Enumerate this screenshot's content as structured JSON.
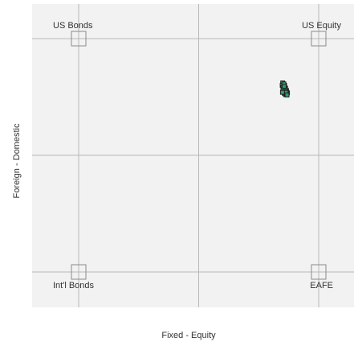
{
  "chart_data": {
    "type": "scatter",
    "title": "",
    "xlabel": "Fixed - Equity",
    "ylabel": "Foreign - Domestic",
    "xlim": [
      0,
      1
    ],
    "ylim": [
      0,
      1
    ],
    "grid": true,
    "colors": {
      "plot_background": "#f2f2f2",
      "gridline": "#b8b8b8",
      "anchor_box": "#8a8a8a",
      "point_fill": "#2e9a6e",
      "point_stroke": "#1a1a1a"
    },
    "anchors": [
      {
        "label": "US Bonds",
        "x": 0,
        "y": 1
      },
      {
        "label": "US Equity",
        "x": 1,
        "y": 1
      },
      {
        "label": "Int'l Bonds",
        "x": 0,
        "y": 0
      },
      {
        "label": "EAFE",
        "x": 1,
        "y": 0
      }
    ],
    "points": [
      {
        "x": 0.85,
        "y": 0.81
      },
      {
        "x": 0.848,
        "y": 0.8
      },
      {
        "x": 0.851,
        "y": 0.79
      },
      {
        "x": 0.853,
        "y": 0.775
      },
      {
        "x": 0.857,
        "y": 0.765
      },
      {
        "x": 0.862,
        "y": 0.76
      },
      {
        "x": 0.866,
        "y": 0.762
      },
      {
        "x": 0.87,
        "y": 0.768
      },
      {
        "x": 0.866,
        "y": 0.778
      },
      {
        "x": 0.862,
        "y": 0.788
      },
      {
        "x": 0.858,
        "y": 0.8
      },
      {
        "x": 0.855,
        "y": 0.806
      },
      {
        "x": 0.852,
        "y": 0.783
      },
      {
        "x": 0.86,
        "y": 0.775
      },
      {
        "x": 0.856,
        "y": 0.795
      },
      {
        "x": 0.864,
        "y": 0.77
      },
      {
        "x": 0.849,
        "y": 0.77
      },
      {
        "x": 0.868,
        "y": 0.758
      }
    ]
  }
}
